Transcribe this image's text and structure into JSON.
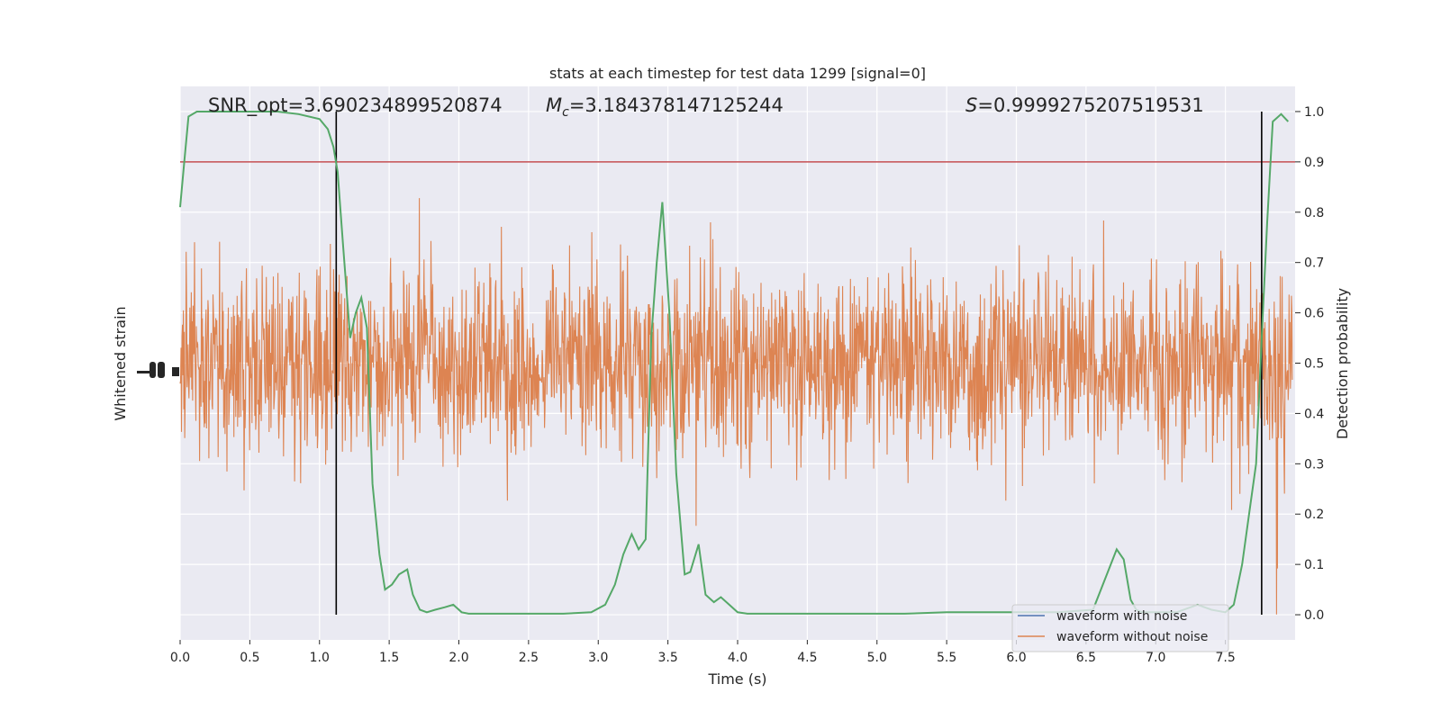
{
  "chart_data": {
    "type": "line",
    "title": "stats at each timestep for test data 1299 [signal=0]",
    "xlabel": "Time (s)",
    "ylabel_left": "Whitened strain",
    "ylabel_right": "Detection probability",
    "xlim": [
      0.0,
      8.0
    ],
    "ylim_right": [
      -0.05,
      1.05
    ],
    "xticks": [
      "0.0",
      "0.5",
      "1.0",
      "1.5",
      "2.0",
      "2.5",
      "3.0",
      "3.5",
      "4.0",
      "4.5",
      "5.0",
      "5.5",
      "6.0",
      "6.5",
      "7.0",
      "7.5"
    ],
    "yticks_right": [
      "0.0",
      "0.1",
      "0.2",
      "0.3",
      "0.4",
      "0.5",
      "0.6",
      "0.7",
      "0.8",
      "0.9",
      "1.0"
    ],
    "grid": true,
    "annotations": {
      "snr": "SNR_opt=3.690234899520874",
      "mc_symbol": "M",
      "mc_sub": "c",
      "mc_value": "=3.184378147125244",
      "s_symbol": "S",
      "s_value": "=0.9999275207519531"
    },
    "threshold": 0.9,
    "vlines": [
      1.12,
      7.76
    ],
    "legend": {
      "placement": "lower-right",
      "entries": [
        {
          "label": "waveform with noise",
          "color": "#4c72b0"
        },
        {
          "label": "waveform without noise",
          "color": "#dd8452"
        }
      ]
    },
    "detection_probability": {
      "color": "#55a868",
      "x": [
        0.0,
        0.03,
        0.06,
        0.12,
        0.18,
        0.3,
        0.5,
        0.7,
        0.85,
        1.0,
        1.06,
        1.1,
        1.13,
        1.17,
        1.22,
        1.26,
        1.3,
        1.34,
        1.38,
        1.43,
        1.47,
        1.52,
        1.57,
        1.63,
        1.67,
        1.72,
        1.77,
        1.83,
        1.9,
        1.96,
        2.02,
        2.07,
        2.14,
        2.2,
        2.35,
        2.55,
        2.75,
        2.95,
        3.05,
        3.12,
        3.18,
        3.24,
        3.29,
        3.34,
        3.38,
        3.42,
        3.46,
        3.51,
        3.56,
        3.62,
        3.66,
        3.72,
        3.77,
        3.83,
        3.88,
        3.94,
        4.0,
        4.07,
        4.2,
        4.35,
        4.6,
        4.9,
        5.2,
        5.5,
        5.75,
        6.0,
        6.3,
        6.55,
        6.72,
        6.77,
        6.82,
        6.86,
        6.9,
        7.05,
        7.15,
        7.3,
        7.4,
        7.5,
        7.56,
        7.62,
        7.67,
        7.72,
        7.76,
        7.8,
        7.84,
        7.9,
        7.95
      ],
      "y": [
        0.81,
        0.9,
        0.99,
        1.0,
        1.0,
        1.0,
        1.0,
        1.0,
        0.995,
        0.985,
        0.965,
        0.93,
        0.88,
        0.73,
        0.55,
        0.6,
        0.63,
        0.57,
        0.26,
        0.12,
        0.05,
        0.06,
        0.08,
        0.09,
        0.04,
        0.01,
        0.005,
        0.01,
        0.015,
        0.02,
        0.005,
        0.002,
        0.002,
        0.002,
        0.002,
        0.002,
        0.002,
        0.005,
        0.02,
        0.06,
        0.12,
        0.16,
        0.13,
        0.15,
        0.55,
        0.7,
        0.82,
        0.6,
        0.28,
        0.08,
        0.085,
        0.14,
        0.04,
        0.025,
        0.035,
        0.02,
        0.005,
        0.002,
        0.002,
        0.002,
        0.002,
        0.002,
        0.002,
        0.005,
        0.005,
        0.005,
        0.005,
        0.01,
        0.13,
        0.11,
        0.03,
        0.01,
        0.005,
        0.005,
        0.005,
        0.02,
        0.01,
        0.005,
        0.02,
        0.1,
        0.2,
        0.3,
        0.55,
        0.78,
        0.98,
        0.995,
        0.98
      ]
    },
    "series": [
      {
        "name": "waveform with noise",
        "color": "#4c72b0",
        "visible": false
      },
      {
        "name": "waveform without noise",
        "color": "#dd8452",
        "note_values": "dense noise trace spanning detection-probability range ~0.0 to ~1.0"
      }
    ]
  }
}
